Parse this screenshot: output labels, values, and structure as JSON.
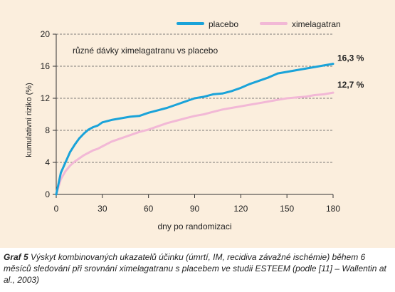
{
  "chart_data": {
    "type": "line",
    "subtitle": "různé dávky ximelagatranu vs placebo",
    "xlabel": "dny po randomizaci",
    "ylabel": "kumulativní riziko (%)",
    "xlim": [
      0,
      180
    ],
    "ylim": [
      0,
      20
    ],
    "xticks": [
      0,
      30,
      60,
      90,
      120,
      150,
      180
    ],
    "yticks": [
      0,
      4,
      8,
      12,
      16,
      20
    ],
    "grid": "horizontal dashed",
    "legend_position": "top-right",
    "series": [
      {
        "name": "placebo",
        "color": "#1aa3d9",
        "end_label": "16,3 %",
        "x": [
          0,
          3,
          6,
          9,
          12,
          15,
          18,
          21,
          24,
          27,
          30,
          36,
          42,
          48,
          54,
          60,
          66,
          72,
          78,
          84,
          90,
          96,
          102,
          108,
          114,
          120,
          126,
          132,
          138,
          144,
          150,
          156,
          162,
          168,
          174,
          180
        ],
        "values": [
          0,
          2.7,
          4.0,
          5.3,
          6.2,
          7.0,
          7.6,
          8.1,
          8.4,
          8.6,
          9.0,
          9.3,
          9.5,
          9.7,
          9.8,
          10.2,
          10.5,
          10.8,
          11.2,
          11.6,
          12.0,
          12.2,
          12.5,
          12.6,
          12.9,
          13.3,
          13.8,
          14.2,
          14.6,
          15.1,
          15.3,
          15.5,
          15.7,
          15.9,
          16.1,
          16.3
        ]
      },
      {
        "name": "ximelagatran",
        "color": "#f2b8d6",
        "end_label": "12,7 %",
        "x": [
          0,
          3,
          6,
          9,
          12,
          15,
          18,
          21,
          24,
          27,
          30,
          36,
          42,
          48,
          54,
          60,
          66,
          72,
          78,
          84,
          90,
          96,
          102,
          108,
          114,
          120,
          126,
          132,
          138,
          144,
          150,
          156,
          162,
          168,
          174,
          180
        ],
        "values": [
          0,
          1.9,
          2.9,
          3.6,
          4.1,
          4.5,
          4.9,
          5.2,
          5.5,
          5.7,
          6.0,
          6.6,
          7.0,
          7.4,
          7.8,
          8.1,
          8.5,
          8.9,
          9.2,
          9.5,
          9.8,
          10.0,
          10.3,
          10.6,
          10.8,
          11.0,
          11.2,
          11.4,
          11.6,
          11.8,
          12.0,
          12.1,
          12.2,
          12.4,
          12.5,
          12.7
        ]
      }
    ]
  },
  "caption": {
    "label": "Graf 5",
    "text": "Výskyt kombinovaných ukazatelů účinku (úmrtí, IM, recidiva závažné ischémie) během 6 měsíců sledování při srovnání ximelagatranu s placebem ve studii ESTEEM (podle [11] – Wallentin at al., 2003)"
  }
}
